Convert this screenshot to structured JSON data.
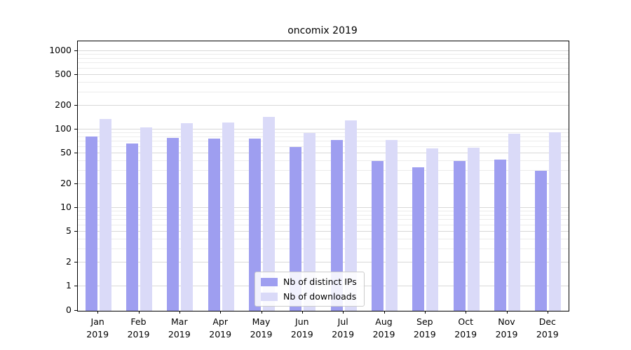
{
  "chart_data": {
    "type": "bar",
    "title": "oncomix 2019",
    "categories": [
      "Jan 2019",
      "Feb 2019",
      "Mar 2019",
      "Apr 2019",
      "May 2019",
      "Jun 2019",
      "Jul 2019",
      "Aug 2019",
      "Sep 2019",
      "Oct 2019",
      "Nov 2019",
      "Dec 2019"
    ],
    "series": [
      {
        "name": "Nb of distinct IPs",
        "color": "#9e9ef0",
        "values": [
          82,
          66,
          79,
          77,
          76,
          60,
          74,
          40,
          33,
          40,
          41,
          30
        ]
      },
      {
        "name": "Nb of downloads",
        "color": "#dadaf8",
        "values": [
          135,
          106,
          120,
          122,
          145,
          90,
          130,
          74,
          58,
          59,
          89,
          92
        ]
      }
    ],
    "yscale": "log",
    "yticks": [
      0,
      1,
      2,
      5,
      10,
      20,
      50,
      100,
      200,
      500,
      1000
    ],
    "ylim": [
      0,
      1300
    ],
    "grid": true,
    "legend_position": "lower-center-inside",
    "colors": {
      "distinct_ips": "#9e9ef0",
      "downloads": "#dadaf8",
      "grid_major": "#d8d8d8",
      "grid_minor": "#ececec",
      "spine": "#000000"
    }
  }
}
